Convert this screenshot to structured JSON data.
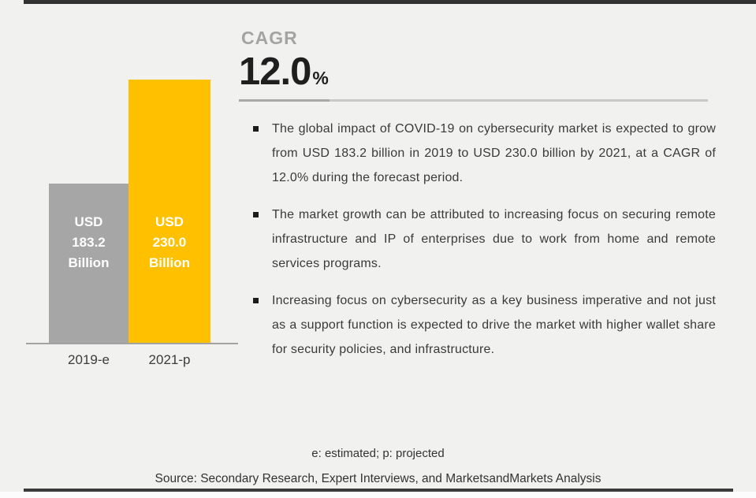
{
  "colors": {
    "background": "#f1f1f0",
    "bar_gray": "#a6a6a6",
    "bar_gold": "#ffc000",
    "rule_dark": "#323232",
    "text_dark": "#3a3a3a",
    "cagr_gray": "#a4a4a4"
  },
  "cagr": {
    "label": "CAGR",
    "value": "12.0",
    "unit": "%"
  },
  "chart_data": {
    "type": "bar",
    "categories": [
      "2019-e",
      "2021-p"
    ],
    "values": [
      183.2,
      230.0
    ],
    "unit": "USD Billion",
    "bar_value_labels": [
      [
        "USD",
        "183.2",
        "Billion"
      ],
      [
        "USD",
        "230.0",
        "Billion"
      ]
    ],
    "bar_colors": [
      "#a6a6a6",
      "#ffc000"
    ],
    "cagr_percent": 12.0,
    "legend_position": "none",
    "grid": false
  },
  "bullets": [
    "The global impact of COVID-19 on cybersecurity market is expected to grow from USD 183.2 billion in 2019 to USD 230.0 billion by 2021, at a CAGR of 12.0% during the forecast period.",
    "The market growth can be attributed to increasing focus on securing remote infrastructure and IP of enterprises due to work from home and remote services programs.",
    "Increasing focus on cybersecurity as a key business imperative and not just as a support function is expected to drive the market with higher wallet share for security policies, and infrastructure."
  ],
  "footer": {
    "note": "e: estimated; p: projected",
    "source": "Source: Secondary Research, Expert Interviews, and MarketsandMarkets Analysis"
  }
}
